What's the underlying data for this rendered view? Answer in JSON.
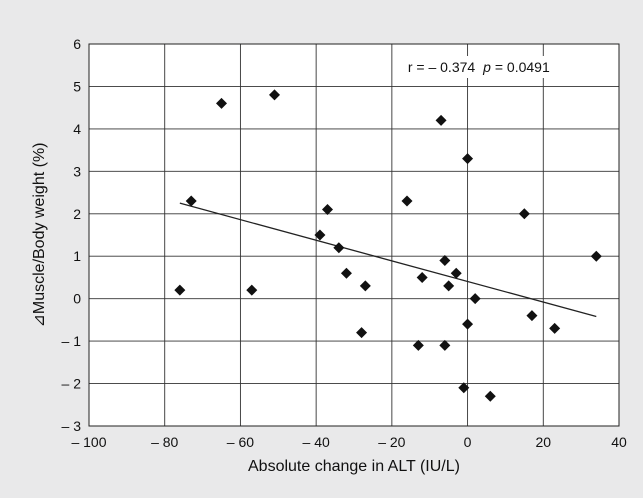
{
  "chart_data": {
    "type": "scatter",
    "xlabel": "Absolute change in ALT (IU/L)",
    "ylabel": "⊿Muscle/Body weight (%)",
    "xlim": [
      -100,
      40
    ],
    "ylim": [
      -3,
      6
    ],
    "xticks": [
      -100,
      -80,
      -60,
      -40,
      -20,
      0,
      20,
      40
    ],
    "yticks": [
      -3,
      -2,
      -1,
      0,
      1,
      2,
      3,
      4,
      5,
      6
    ],
    "xtick_labels": [
      "– 100",
      "– 80",
      "– 60",
      "– 40",
      "– 20",
      "0",
      "20",
      "40"
    ],
    "ytick_labels": [
      "– 3",
      "– 2",
      "– 1",
      "0",
      "1",
      "2",
      "3",
      "4",
      "5",
      "6"
    ],
    "grid": true,
    "annotation": {
      "r_text": "r = – 0.374",
      "p_label": "p",
      "p_value_text": " = 0.0491"
    },
    "trendline": {
      "x": [
        -76,
        34
      ],
      "y": [
        2.25,
        -0.42
      ]
    },
    "points": [
      {
        "x": -76,
        "y": 0.2
      },
      {
        "x": -73,
        "y": 2.3
      },
      {
        "x": -65,
        "y": 4.6
      },
      {
        "x": -57,
        "y": 0.2
      },
      {
        "x": -51,
        "y": 4.8
      },
      {
        "x": -39,
        "y": 1.5
      },
      {
        "x": -37,
        "y": 2.1
      },
      {
        "x": -34,
        "y": 1.2
      },
      {
        "x": -32,
        "y": 0.6
      },
      {
        "x": -28,
        "y": -0.8
      },
      {
        "x": -27,
        "y": 0.3
      },
      {
        "x": -16,
        "y": 2.3
      },
      {
        "x": -13,
        "y": -1.1
      },
      {
        "x": -12,
        "y": 0.5
      },
      {
        "x": -7,
        "y": 4.2
      },
      {
        "x": -6,
        "y": 0.9
      },
      {
        "x": -6,
        "y": -1.1
      },
      {
        "x": -5,
        "y": 0.3
      },
      {
        "x": -3,
        "y": 0.6
      },
      {
        "x": -1,
        "y": -2.1
      },
      {
        "x": 0,
        "y": 3.3
      },
      {
        "x": 0,
        "y": -0.6
      },
      {
        "x": 2,
        "y": 0.0
      },
      {
        "x": 6,
        "y": -2.3
      },
      {
        "x": 15,
        "y": 2.0
      },
      {
        "x": 17,
        "y": -0.4
      },
      {
        "x": 23,
        "y": -0.7
      },
      {
        "x": 34,
        "y": 1.0
      }
    ]
  }
}
